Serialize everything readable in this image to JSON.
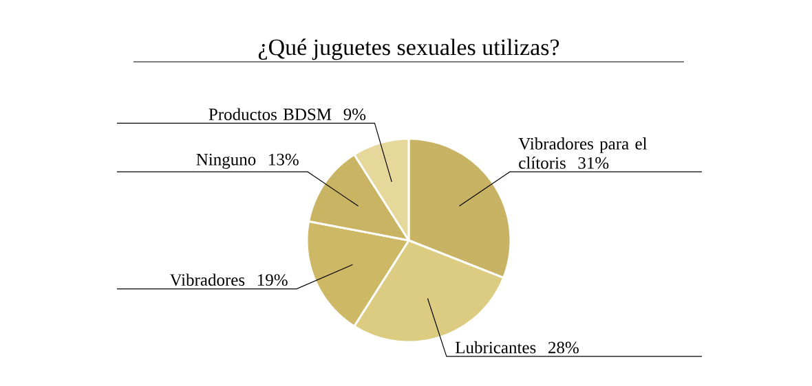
{
  "chart_data": {
    "type": "pie",
    "title": "¿Qué juguetes sexuales utilizas?",
    "categories": [
      "Vibradores para el clítoris",
      "Lubricantes",
      "Vibradores",
      "Ninguno",
      "Productos BDSM"
    ],
    "values": [
      31,
      28,
      19,
      13,
      9
    ],
    "value_labels": [
      "31%",
      "28%",
      "19%",
      "13%",
      "9%"
    ],
    "colors": [
      "#c8b263",
      "#dccc82",
      "#cdb865",
      "#c9b464",
      "#e6d89a"
    ]
  }
}
